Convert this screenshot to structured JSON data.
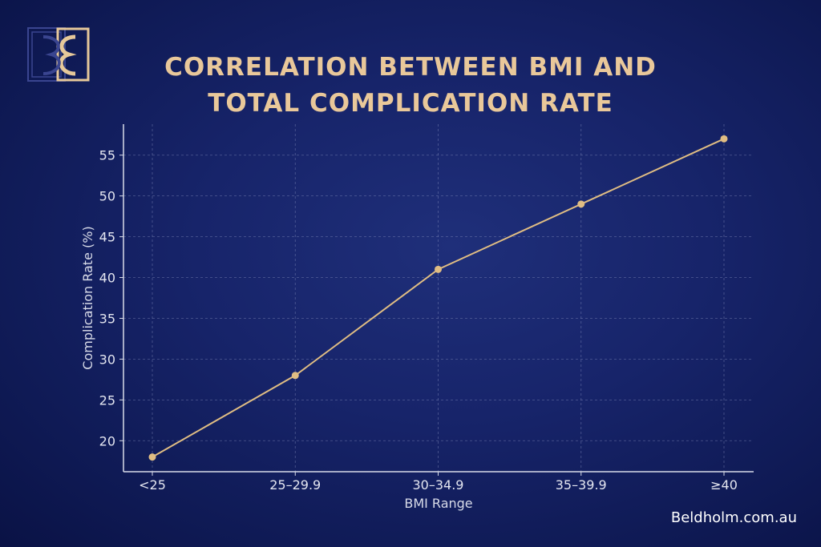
{
  "brand": {
    "logo_text": "B&E",
    "website": "Beldholm.com.au"
  },
  "colors": {
    "line": "#e0bd83",
    "title": "#e9c89a",
    "axis": "#d8dbe8",
    "background": "#16236a"
  },
  "chart_data": {
    "type": "line",
    "title_lines": [
      "CORRELATION BETWEEN BMI AND",
      "TOTAL COMPLICATION RATE"
    ],
    "xlabel": "BMI Range",
    "ylabel": "Complication Rate (%)",
    "categories": [
      "<25",
      "25–29.9",
      "30–34.9",
      "35–39.9",
      "≥40"
    ],
    "values": [
      18,
      28,
      41,
      49,
      57
    ],
    "yticks": [
      20,
      25,
      30,
      35,
      40,
      45,
      50,
      55
    ],
    "ylim": [
      16.2,
      58.8
    ],
    "grid": true,
    "markers": true
  }
}
